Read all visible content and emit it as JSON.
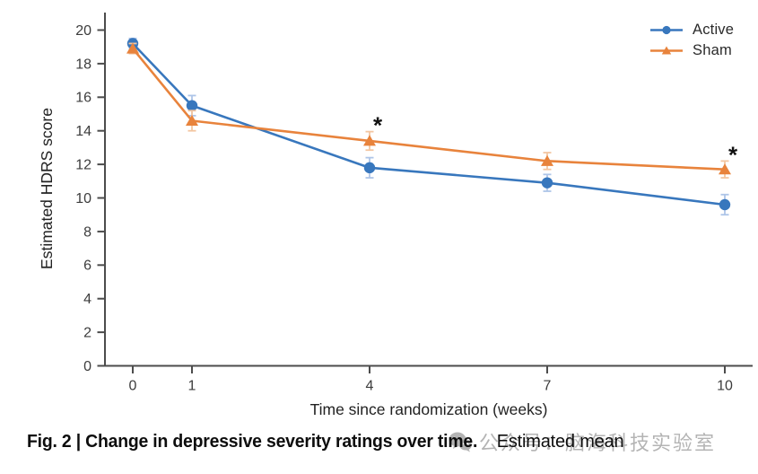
{
  "figure": {
    "caption_bold": "Fig. 2 | Change in depressive severity ratings over time.",
    "caption_regular": "Estimated mean"
  },
  "watermark": {
    "icon": "wechat-icon",
    "text": "公众号：脑海科技实验室",
    "color": "#a8a8a8"
  },
  "chart_data": {
    "type": "line",
    "title": "",
    "xlabel": "Time since randomization (weeks)",
    "ylabel": "Estimated HDRS score",
    "x": [
      0,
      1,
      4,
      7,
      10
    ],
    "xticks": [
      0,
      1,
      4,
      7,
      10
    ],
    "yticks": [
      0,
      2,
      4,
      6,
      8,
      10,
      12,
      14,
      16,
      18,
      20
    ],
    "ylim": [
      0,
      20
    ],
    "xlim": [
      0,
      10
    ],
    "grid": false,
    "legend_position": "top-right",
    "axis_color": "#4c4c4c",
    "tick_label_color": "#3c3c3c",
    "series": [
      {
        "name": "Active",
        "marker": "circle",
        "color": "#3877BD",
        "error_color": "#AEC5E8",
        "values": [
          19.2,
          15.5,
          11.8,
          10.9,
          9.6
        ],
        "errors": [
          0.3,
          0.6,
          0.6,
          0.5,
          0.6
        ]
      },
      {
        "name": "Sham",
        "marker": "triangle",
        "color": "#E8833C",
        "error_color": "#F3C6A1",
        "values": [
          18.9,
          14.6,
          13.4,
          12.2,
          11.7
        ],
        "errors": [
          0.3,
          0.6,
          0.55,
          0.5,
          0.5
        ]
      }
    ],
    "annotations": [
      {
        "text": "*",
        "series": "Sham",
        "x": 4,
        "meaning": "significant difference"
      },
      {
        "text": "*",
        "series": "Sham",
        "x": 10,
        "meaning": "significant difference"
      }
    ]
  }
}
